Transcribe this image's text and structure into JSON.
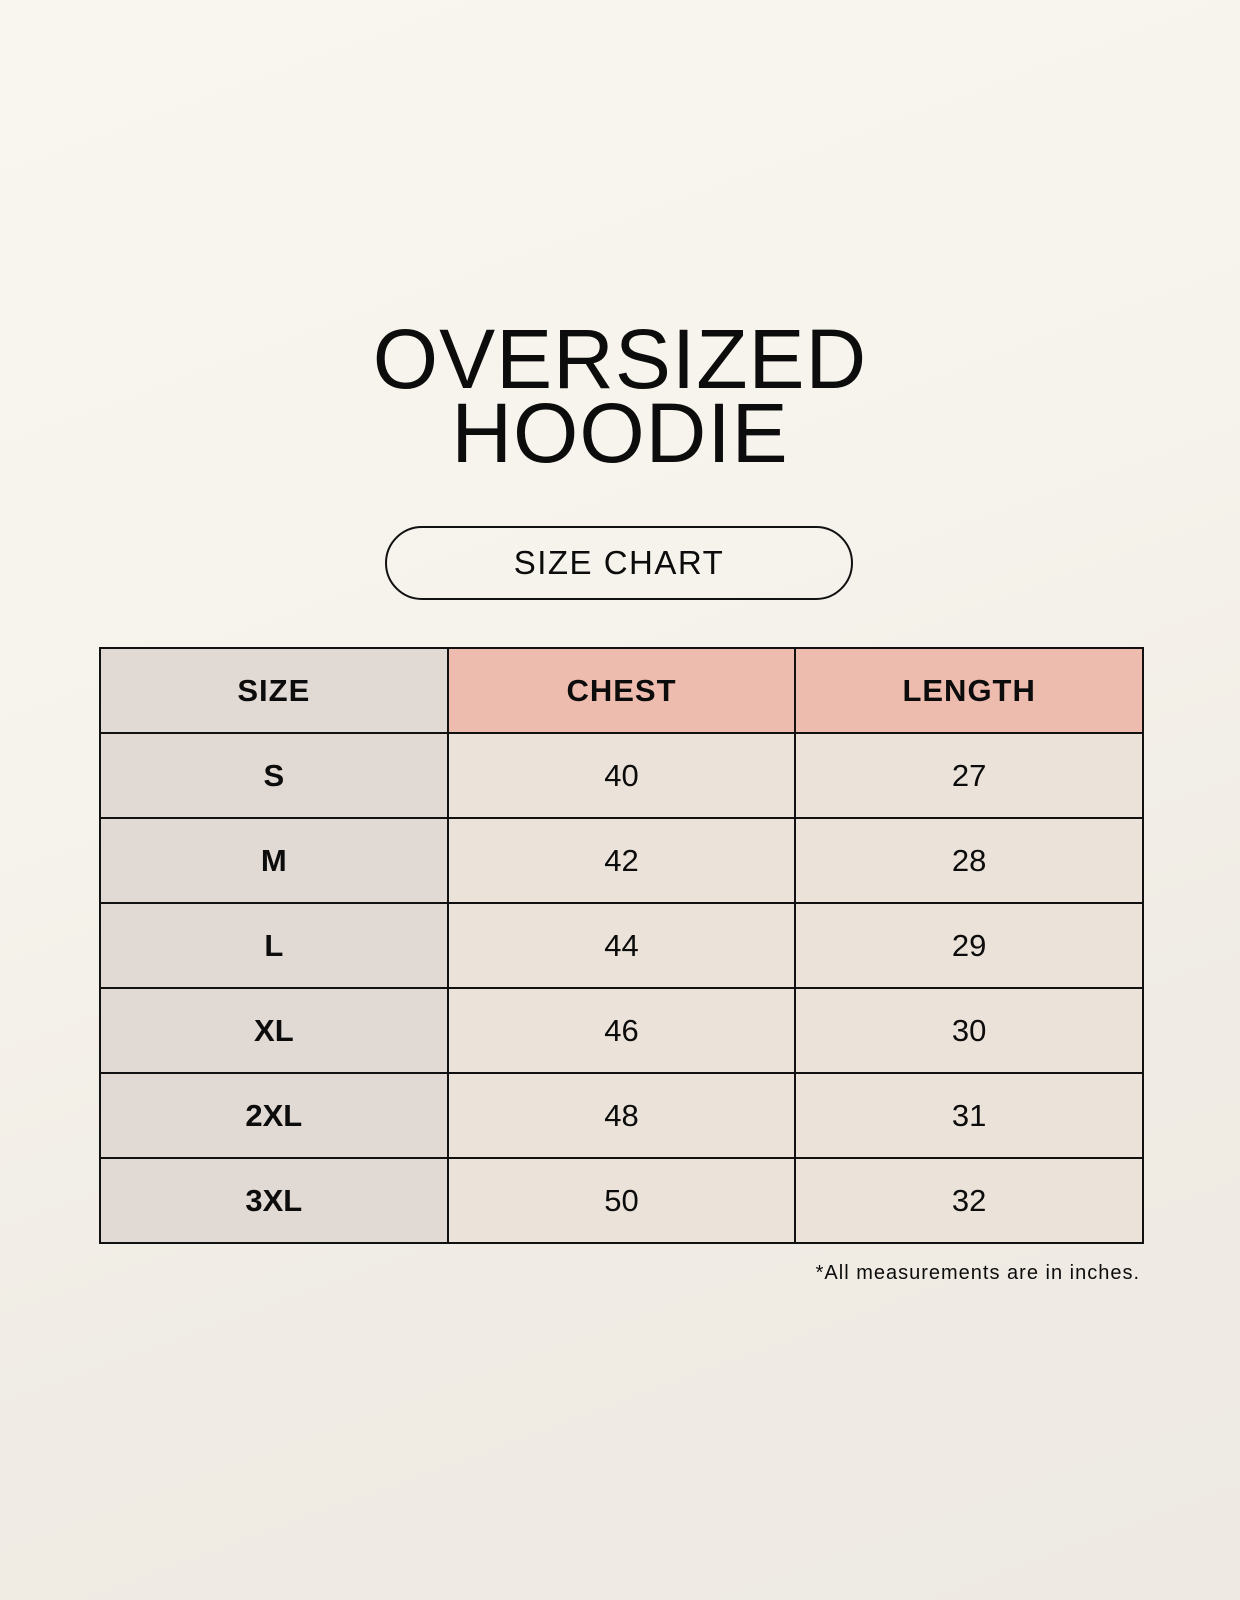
{
  "title_lines": [
    "OVERSIZED",
    "HOODIE"
  ],
  "subtitle": "SIZE CHART",
  "table": {
    "headers": [
      "SIZE",
      "CHEST",
      "LENGTH"
    ],
    "rows": [
      [
        "S",
        "40",
        "27"
      ],
      [
        "M",
        "42",
        "28"
      ],
      [
        "L",
        "44",
        "29"
      ],
      [
        "XL",
        "46",
        "30"
      ],
      [
        "2XL",
        "48",
        "31"
      ],
      [
        "3XL",
        "50",
        "32"
      ]
    ]
  },
  "footnote": "*All measurements are in inches.",
  "colors": {
    "size_column": "#e1d9d3",
    "header_accent": "#edbcae",
    "value_cells": "#ebe3d9"
  }
}
